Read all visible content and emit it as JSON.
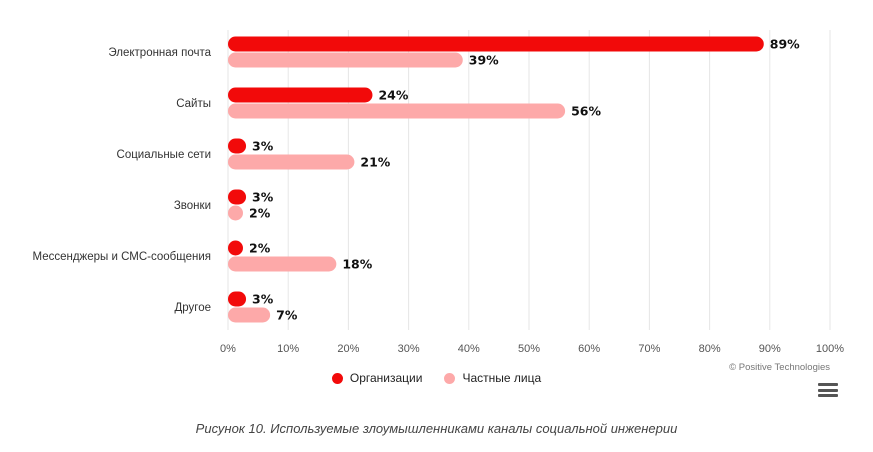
{
  "chart_data": {
    "type": "bar",
    "orientation": "horizontal",
    "categories": [
      "Электронная почта",
      "Сайты",
      "Социальные сети",
      "Звонки",
      "Мессенджеры и СМС-сообщения",
      "Другое"
    ],
    "series": [
      {
        "name": "Организации",
        "values": [
          89,
          24,
          3,
          3,
          2,
          3
        ],
        "color": "#f20a0a"
      },
      {
        "name": "Частные лица",
        "values": [
          39,
          56,
          21,
          2,
          18,
          7
        ],
        "color": "#fda9a9"
      }
    ],
    "data_label_suffix": "%",
    "xlim": [
      0,
      100
    ],
    "xticks": [
      "0%",
      "10%",
      "20%",
      "30%",
      "40%",
      "50%",
      "60%",
      "70%",
      "80%",
      "90%",
      "100%"
    ],
    "grid": true,
    "legend_position": "bottom"
  },
  "legend": {
    "items": [
      {
        "label": "Организации",
        "color": "#f20a0a"
      },
      {
        "label": "Частные лица",
        "color": "#fda9a9"
      }
    ]
  },
  "credit": "© Positive Technologies",
  "menu_icon": "hamburger-menu-icon",
  "caption": "Рисунок 10. Используемые злоумышленниками каналы социальной инженерии"
}
